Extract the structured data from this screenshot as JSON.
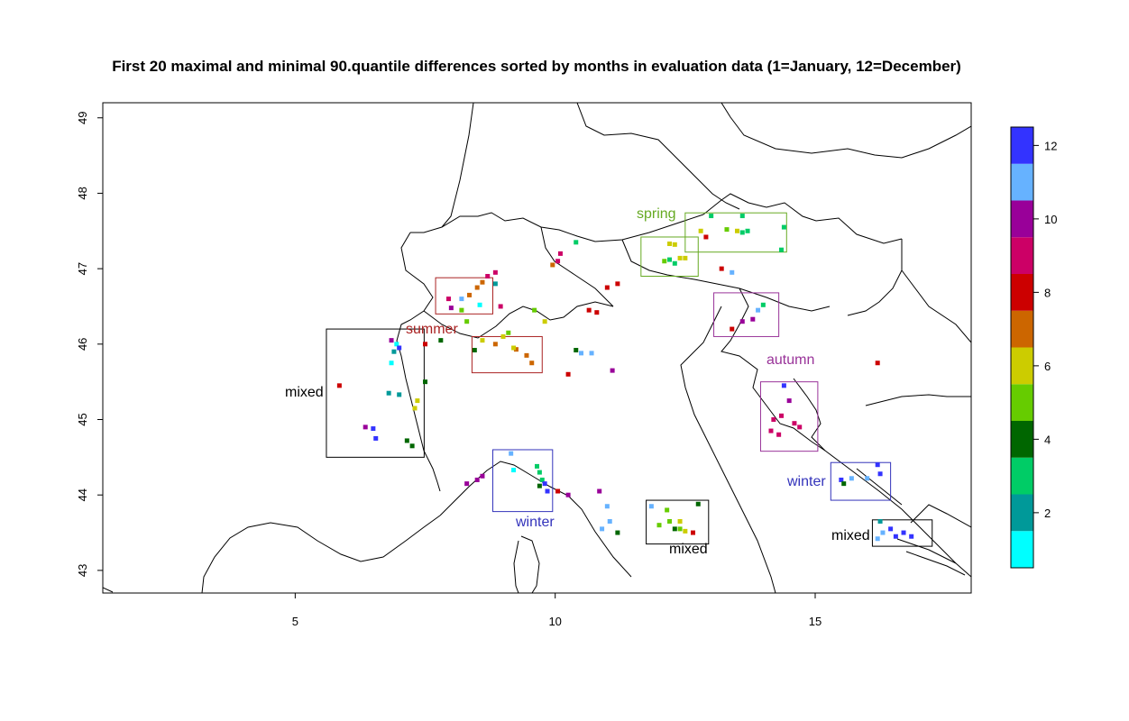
{
  "title": "First 20 maximal and minimal 90.quantile differences sorted by months in evaluation data (1=January, 12=December)",
  "x_axis": {
    "ticks": [
      "5",
      "10",
      "15"
    ]
  },
  "y_axis": {
    "ticks": [
      "43",
      "44",
      "45",
      "46",
      "47",
      "48",
      "49"
    ]
  },
  "colorbar": {
    "ticks": [
      "2",
      "4",
      "6",
      "8",
      "10",
      "12"
    ],
    "colors": [
      "#00FFFF",
      "#009999",
      "#00CC66",
      "#006600",
      "#66CC00",
      "#CCCC00",
      "#CC6600",
      "#CC0000",
      "#CC0066",
      "#990099",
      "#66B2FF",
      "#3333FF"
    ]
  },
  "annotations": {
    "spring": "spring",
    "summer": "summer",
    "autumn": "autumn",
    "winter_west": "winter",
    "winter_east": "winter",
    "mixed_west": "mixed",
    "mixed_center": "mixed",
    "mixed_east": "mixed"
  },
  "annotation_colors": {
    "spring": "#66AA22",
    "summer": "#AA2222",
    "autumn": "#993399",
    "winter": "#3333BB",
    "mixed": "#000000"
  },
  "chart_data": {
    "type": "map",
    "xlim": [
      1.3,
      18
    ],
    "ylim": [
      42.7,
      49.2
    ],
    "xlabel": "",
    "ylabel": "",
    "regions": [
      {
        "label": "spring",
        "lon": [
          11.65,
          12.75
        ],
        "lat": [
          46.9,
          47.42
        ]
      },
      {
        "label": "spring",
        "lon": [
          12.5,
          14.45
        ],
        "lat": [
          47.22,
          47.74
        ]
      },
      {
        "label": "summer",
        "lon": [
          7.7,
          8.8
        ],
        "lat": [
          46.4,
          46.88
        ]
      },
      {
        "label": "summer",
        "lon": [
          8.4,
          9.75
        ],
        "lat": [
          45.62,
          46.1
        ]
      },
      {
        "label": "autumn",
        "lon": [
          13.05,
          14.3
        ],
        "lat": [
          46.1,
          46.68
        ]
      },
      {
        "label": "autumn",
        "lon": [
          13.95,
          15.05
        ],
        "lat": [
          44.58,
          45.5
        ]
      },
      {
        "label": "winter",
        "lon": [
          8.8,
          9.95
        ],
        "lat": [
          43.78,
          44.6
        ]
      },
      {
        "label": "winter",
        "lon": [
          15.3,
          16.45
        ],
        "lat": [
          43.93,
          44.43
        ]
      },
      {
        "label": "mixed",
        "lon": [
          5.6,
          7.48
        ],
        "lat": [
          44.5,
          46.2
        ]
      },
      {
        "label": "mixed",
        "lon": [
          11.75,
          12.95
        ],
        "lat": [
          43.35,
          43.93
        ]
      },
      {
        "label": "mixed",
        "lon": [
          16.1,
          17.25
        ],
        "lat": [
          43.32,
          43.67
        ]
      }
    ],
    "points": [
      {
        "lon": 12.2,
        "lat": 47.33,
        "m": 6
      },
      {
        "lon": 12.3,
        "lat": 47.32,
        "m": 6
      },
      {
        "lon": 12.4,
        "lat": 47.14,
        "m": 6
      },
      {
        "lon": 12.5,
        "lat": 47.14,
        "m": 6
      },
      {
        "lon": 12.2,
        "lat": 47.12,
        "m": 3
      },
      {
        "lon": 12.3,
        "lat": 47.07,
        "m": 3
      },
      {
        "lon": 12.1,
        "lat": 47.1,
        "m": 5
      },
      {
        "lon": 12.8,
        "lat": 47.5,
        "m": 6
      },
      {
        "lon": 12.9,
        "lat": 47.42,
        "m": 8
      },
      {
        "lon": 13.3,
        "lat": 47.52,
        "m": 5
      },
      {
        "lon": 13.5,
        "lat": 47.5,
        "m": 6
      },
      {
        "lon": 13.6,
        "lat": 47.48,
        "m": 3
      },
      {
        "lon": 13.7,
        "lat": 47.5,
        "m": 3
      },
      {
        "lon": 13.0,
        "lat": 47.7,
        "m": 3
      },
      {
        "lon": 13.6,
        "lat": 47.7,
        "m": 3
      },
      {
        "lon": 14.35,
        "lat": 47.25,
        "m": 3
      },
      {
        "lon": 13.2,
        "lat": 47.0,
        "m": 8
      },
      {
        "lon": 13.4,
        "lat": 46.95,
        "m": 11
      },
      {
        "lon": 14.4,
        "lat": 47.55,
        "m": 3
      },
      {
        "lon": 7.95,
        "lat": 46.6,
        "m": 9
      },
      {
        "lon": 8.0,
        "lat": 46.48,
        "m": 10
      },
      {
        "lon": 8.2,
        "lat": 46.6,
        "m": 11
      },
      {
        "lon": 8.35,
        "lat": 46.65,
        "m": 7
      },
      {
        "lon": 8.5,
        "lat": 46.75,
        "m": 7
      },
      {
        "lon": 8.6,
        "lat": 46.82,
        "m": 7
      },
      {
        "lon": 8.55,
        "lat": 46.52,
        "m": 1
      },
      {
        "lon": 8.7,
        "lat": 46.9,
        "m": 9
      },
      {
        "lon": 8.2,
        "lat": 46.45,
        "m": 5
      },
      {
        "lon": 8.3,
        "lat": 46.3,
        "m": 5
      },
      {
        "lon": 8.85,
        "lat": 46.8,
        "m": 2
      },
      {
        "lon": 8.85,
        "lat": 46.95,
        "m": 9
      },
      {
        "lon": 8.6,
        "lat": 46.05,
        "m": 6
      },
      {
        "lon": 8.85,
        "lat": 46.0,
        "m": 7
      },
      {
        "lon": 9.25,
        "lat": 45.93,
        "m": 7
      },
      {
        "lon": 9.45,
        "lat": 45.85,
        "m": 7
      },
      {
        "lon": 9.55,
        "lat": 45.75,
        "m": 7
      },
      {
        "lon": 9.2,
        "lat": 45.95,
        "m": 6
      },
      {
        "lon": 8.45,
        "lat": 45.92,
        "m": 4
      },
      {
        "lon": 9.0,
        "lat": 46.1,
        "m": 6
      },
      {
        "lon": 9.1,
        "lat": 46.15,
        "m": 5
      },
      {
        "lon": 8.95,
        "lat": 46.5,
        "m": 9
      },
      {
        "lon": 13.6,
        "lat": 46.3,
        "m": 10
      },
      {
        "lon": 13.8,
        "lat": 46.33,
        "m": 10
      },
      {
        "lon": 13.9,
        "lat": 46.45,
        "m": 11
      },
      {
        "lon": 13.4,
        "lat": 46.2,
        "m": 8
      },
      {
        "lon": 14.0,
        "lat": 46.52,
        "m": 3
      },
      {
        "lon": 14.2,
        "lat": 45.0,
        "m": 9
      },
      {
        "lon": 14.35,
        "lat": 45.05,
        "m": 9
      },
      {
        "lon": 14.15,
        "lat": 44.85,
        "m": 9
      },
      {
        "lon": 14.5,
        "lat": 45.25,
        "m": 10
      },
      {
        "lon": 14.3,
        "lat": 44.8,
        "m": 9
      },
      {
        "lon": 14.6,
        "lat": 44.95,
        "m": 9
      },
      {
        "lon": 14.4,
        "lat": 45.45,
        "m": 12
      },
      {
        "lon": 14.7,
        "lat": 44.9,
        "m": 9
      },
      {
        "lon": 9.7,
        "lat": 44.3,
        "m": 3
      },
      {
        "lon": 9.75,
        "lat": 44.2,
        "m": 3
      },
      {
        "lon": 9.8,
        "lat": 44.15,
        "m": 12
      },
      {
        "lon": 9.7,
        "lat": 44.12,
        "m": 4
      },
      {
        "lon": 9.65,
        "lat": 44.38,
        "m": 3
      },
      {
        "lon": 9.85,
        "lat": 44.05,
        "m": 12
      },
      {
        "lon": 9.2,
        "lat": 44.33,
        "m": 1
      },
      {
        "lon": 9.15,
        "lat": 44.55,
        "m": 11
      },
      {
        "lon": 15.7,
        "lat": 44.22,
        "m": 11
      },
      {
        "lon": 16.0,
        "lat": 44.22,
        "m": 11
      },
      {
        "lon": 16.25,
        "lat": 44.28,
        "m": 12
      },
      {
        "lon": 15.5,
        "lat": 44.2,
        "m": 12
      },
      {
        "lon": 15.55,
        "lat": 44.15,
        "m": 4
      },
      {
        "lon": 16.2,
        "lat": 44.4,
        "m": 12
      },
      {
        "lon": 12.15,
        "lat": 43.8,
        "m": 5
      },
      {
        "lon": 12.2,
        "lat": 43.65,
        "m": 5
      },
      {
        "lon": 12.0,
        "lat": 43.6,
        "m": 5
      },
      {
        "lon": 12.3,
        "lat": 43.55,
        "m": 4
      },
      {
        "lon": 12.4,
        "lat": 43.55,
        "m": 5
      },
      {
        "lon": 12.5,
        "lat": 43.52,
        "m": 6
      },
      {
        "lon": 12.65,
        "lat": 43.5,
        "m": 8
      },
      {
        "lon": 12.4,
        "lat": 43.65,
        "m": 6
      },
      {
        "lon": 12.75,
        "lat": 43.88,
        "m": 4
      },
      {
        "lon": 11.85,
        "lat": 43.85,
        "m": 11
      },
      {
        "lon": 16.55,
        "lat": 43.45,
        "m": 12
      },
      {
        "lon": 16.7,
        "lat": 43.5,
        "m": 12
      },
      {
        "lon": 16.85,
        "lat": 43.45,
        "m": 12
      },
      {
        "lon": 16.45,
        "lat": 43.55,
        "m": 12
      },
      {
        "lon": 16.3,
        "lat": 43.5,
        "m": 11
      },
      {
        "lon": 16.2,
        "lat": 43.42,
        "m": 11
      },
      {
        "lon": 16.25,
        "lat": 43.65,
        "m": 2
      },
      {
        "lon": 5.85,
        "lat": 45.45,
        "m": 8
      },
      {
        "lon": 6.35,
        "lat": 44.9,
        "m": 10
      },
      {
        "lon": 6.5,
        "lat": 44.88,
        "m": 12
      },
      {
        "lon": 6.55,
        "lat": 44.75,
        "m": 12
      },
      {
        "lon": 7.0,
        "lat": 45.33,
        "m": 2
      },
      {
        "lon": 6.8,
        "lat": 45.35,
        "m": 2
      },
      {
        "lon": 7.15,
        "lat": 44.72,
        "m": 4
      },
      {
        "lon": 7.25,
        "lat": 44.65,
        "m": 4
      },
      {
        "lon": 6.9,
        "lat": 45.9,
        "m": 2
      },
      {
        "lon": 6.85,
        "lat": 45.75,
        "m": 1
      },
      {
        "lon": 6.85,
        "lat": 46.05,
        "m": 10
      },
      {
        "lon": 6.95,
        "lat": 46.0,
        "m": 1
      },
      {
        "lon": 7.0,
        "lat": 45.95,
        "m": 12
      },
      {
        "lon": 7.35,
        "lat": 45.25,
        "m": 6
      },
      {
        "lon": 7.3,
        "lat": 45.15,
        "m": 6
      },
      {
        "lon": 7.5,
        "lat": 45.5,
        "m": 4
      },
      {
        "lon": 7.8,
        "lat": 46.05,
        "m": 4
      },
      {
        "lon": 7.5,
        "lat": 46.0,
        "m": 8
      },
      {
        "lon": 8.5,
        "lat": 44.2,
        "m": 10
      },
      {
        "lon": 8.3,
        "lat": 44.15,
        "m": 10
      },
      {
        "lon": 8.6,
        "lat": 44.25,
        "m": 10
      },
      {
        "lon": 10.05,
        "lat": 47.1,
        "m": 9
      },
      {
        "lon": 10.1,
        "lat": 47.2,
        "m": 9
      },
      {
        "lon": 9.95,
        "lat": 47.05,
        "m": 7
      },
      {
        "lon": 10.4,
        "lat": 47.35,
        "m": 3
      },
      {
        "lon": 10.65,
        "lat": 46.45,
        "m": 8
      },
      {
        "lon": 10.8,
        "lat": 46.42,
        "m": 8
      },
      {
        "lon": 11.2,
        "lat": 46.8,
        "m": 8
      },
      {
        "lon": 11.0,
        "lat": 46.75,
        "m": 8
      },
      {
        "lon": 10.4,
        "lat": 45.92,
        "m": 4
      },
      {
        "lon": 10.5,
        "lat": 45.88,
        "m": 11
      },
      {
        "lon": 10.7,
        "lat": 45.88,
        "m": 11
      },
      {
        "lon": 11.1,
        "lat": 45.65,
        "m": 10
      },
      {
        "lon": 10.25,
        "lat": 45.6,
        "m": 8
      },
      {
        "lon": 10.05,
        "lat": 44.05,
        "m": 8
      },
      {
        "lon": 10.25,
        "lat": 44.0,
        "m": 10
      },
      {
        "lon": 10.85,
        "lat": 44.05,
        "m": 10
      },
      {
        "lon": 11.0,
        "lat": 43.85,
        "m": 11
      },
      {
        "lon": 10.9,
        "lat": 43.55,
        "m": 11
      },
      {
        "lon": 11.05,
        "lat": 43.65,
        "m": 11
      },
      {
        "lon": 11.2,
        "lat": 43.5,
        "m": 4
      },
      {
        "lon": 9.6,
        "lat": 46.45,
        "m": 5
      },
      {
        "lon": 9.8,
        "lat": 46.3,
        "m": 6
      },
      {
        "lon": 16.2,
        "lat": 45.75,
        "m": 8
      }
    ]
  }
}
